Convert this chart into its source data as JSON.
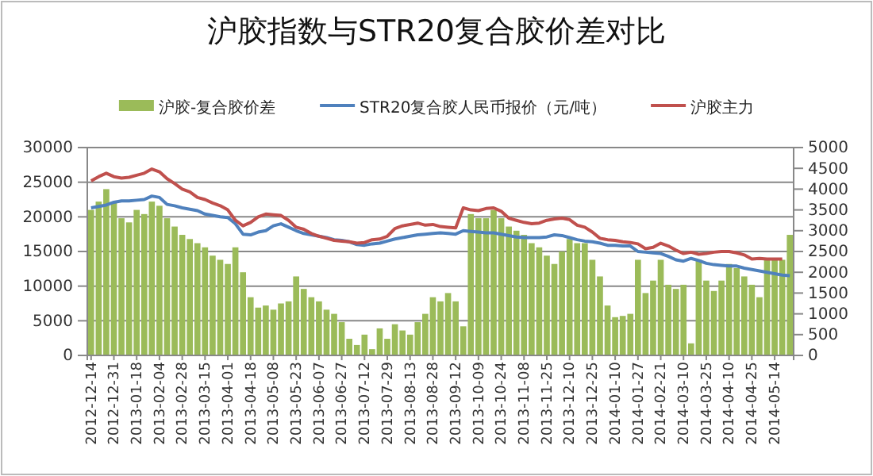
{
  "chart_data": {
    "type": "bar",
    "title": "沪胶指数与STR20复合胶价差对比",
    "categories": [
      "2012-12-14",
      null,
      null,
      "2012-12-31",
      null,
      null,
      "2013-01-18",
      null,
      null,
      "2013-02-04",
      null,
      null,
      "2013-02-28",
      null,
      null,
      "2013-03-15",
      null,
      null,
      "2013-04-01",
      null,
      null,
      "2013-04-18",
      null,
      null,
      "2013-05-08",
      null,
      null,
      "2013-05-23",
      null,
      null,
      "2013-06-07",
      null,
      null,
      "2013-06-27",
      null,
      null,
      "2013-07-12",
      null,
      null,
      "2013-07-29",
      null,
      null,
      "2013-08-13",
      null,
      null,
      "2013-08-28",
      null,
      null,
      "2013-09-12",
      null,
      null,
      "2013-10-09",
      null,
      null,
      "2013-10-24",
      null,
      null,
      "2013-11-08",
      null,
      null,
      "2013-11-25",
      null,
      null,
      "2013-12-10",
      null,
      null,
      "2013-12-25",
      null,
      null,
      "2014-01-10",
      null,
      null,
      "2014-01-27",
      null,
      null,
      "2014-02-21",
      null,
      null,
      "2014-03-10",
      null,
      null,
      "2014-03-25",
      null,
      null,
      "2014-04-10",
      null,
      null,
      "2014-04-25",
      null,
      null,
      "2014-05-14",
      null,
      null
    ],
    "series": [
      {
        "name": "沪胶-复合胶价差",
        "axis": "y2",
        "color": "#9bbb59",
        "values": [
          3500,
          3700,
          4000,
          3700,
          3300,
          3200,
          3500,
          3400,
          3700,
          3600,
          3300,
          3100,
          2900,
          2800,
          2700,
          2600,
          2400,
          2300,
          2200,
          2600,
          2000,
          1400,
          1150,
          1200,
          1100,
          1250,
          1300,
          1900,
          1600,
          1400,
          1300,
          1100,
          1000,
          800,
          400,
          250,
          500,
          150,
          650,
          400,
          750,
          600,
          500,
          800,
          1000,
          1400,
          1300,
          1500,
          1300,
          700,
          3400,
          3300,
          3300,
          3500,
          3300,
          3100,
          3000,
          2900,
          2700,
          2600,
          2400,
          2200,
          2500,
          2800,
          2700,
          2700,
          2300,
          1900,
          1200,
          920,
          950,
          1000,
          2300,
          1500,
          1800,
          2300,
          1700,
          1600,
          1700,
          290,
          2300,
          1800,
          1550,
          1800,
          2200,
          2100,
          1900,
          1700,
          1400,
          2300,
          2300,
          2300,
          2900
        ]
      },
      {
        "name": "STR20复合胶人民币报价（元/吨）",
        "type": "line",
        "color": "#4f81bd",
        "values": [
          21300,
          21500,
          21700,
          22100,
          22300,
          22300,
          22400,
          22500,
          23000,
          22800,
          21800,
          21600,
          21300,
          21100,
          20900,
          20400,
          20200,
          20000,
          19900,
          19000,
          17500,
          17400,
          17800,
          18000,
          18700,
          19000,
          18500,
          18000,
          17600,
          17400,
          17200,
          17000,
          16700,
          16600,
          16400,
          16000,
          15900,
          16100,
          16200,
          16500,
          16800,
          17000,
          17200,
          17400,
          17500,
          17600,
          17700,
          17600,
          17500,
          18000,
          17900,
          17800,
          17700,
          17700,
          17500,
          17300,
          17100,
          17000,
          17000,
          17000,
          17100,
          17400,
          17300,
          17000,
          16700,
          16500,
          16400,
          16200,
          15900,
          15900,
          15800,
          15800,
          15000,
          14900,
          14800,
          14700,
          14300,
          13800,
          13600,
          14000,
          13700,
          13300,
          13100,
          13000,
          12900,
          12900,
          12600,
          12400,
          12200,
          12000,
          11800,
          11600,
          11500
        ]
      },
      {
        "name": "沪胶主力",
        "type": "line",
        "color": "#c0504d",
        "values": [
          25200,
          25800,
          26300,
          25800,
          25600,
          25700,
          26000,
          26300,
          26900,
          26500,
          25500,
          24800,
          24000,
          23600,
          22800,
          22500,
          22000,
          21600,
          21000,
          19500,
          18700,
          19200,
          20000,
          20400,
          20300,
          20200,
          19500,
          18500,
          18200,
          17600,
          17200,
          16900,
          16600,
          16500,
          16400,
          16200,
          16300,
          16700,
          16800,
          17200,
          18300,
          18700,
          18900,
          19100,
          18800,
          18900,
          18600,
          18500,
          18400,
          21300,
          21000,
          20900,
          21200,
          21300,
          20800,
          19800,
          19500,
          19200,
          19000,
          19100,
          19500,
          19700,
          19800,
          19600,
          18800,
          18500,
          17800,
          16900,
          16700,
          16600,
          16400,
          16300,
          16100,
          15400,
          15600,
          16200,
          15800,
          15200,
          14700,
          14900,
          14600,
          14700,
          14900,
          15000,
          15000,
          14800,
          14500,
          13900,
          14000,
          13900,
          13900,
          13900,
          null
        ]
      }
    ],
    "ylim": [
      0,
      30000
    ],
    "yticks": [
      0,
      5000,
      10000,
      15000,
      20000,
      25000,
      30000
    ],
    "y2lim": [
      0,
      5000
    ],
    "y2ticks": [
      0,
      500,
      1000,
      1500,
      2000,
      2500,
      3000,
      3500,
      4000,
      4500,
      5000
    ],
    "grid": "y",
    "legend": "top",
    "marker": "none",
    "line_style": "solid"
  }
}
